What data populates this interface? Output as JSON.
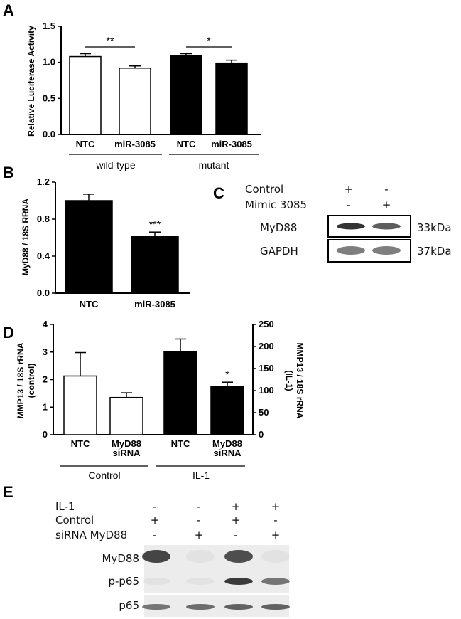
{
  "panels": {
    "A": "A",
    "B": "B",
    "C": "C",
    "D": "D",
    "E": "E"
  },
  "chart_data": [
    {
      "panel": "A",
      "type": "bar",
      "ylabel": "Relative Luciferase Activity",
      "ylim": [
        0,
        1.5
      ],
      "yticks": [
        "0.0",
        "0.5",
        "1.0",
        "1.5"
      ],
      "categories": [
        "NTC",
        "miR-3085",
        "NTC",
        "miR-3085"
      ],
      "values": [
        1.08,
        0.92,
        1.09,
        0.99
      ],
      "errors": [
        0.04,
        0.03,
        0.03,
        0.04
      ],
      "fills": [
        "#ffffff",
        "#ffffff",
        "#000000",
        "#000000"
      ],
      "groups": [
        "wild-type",
        "mutant"
      ],
      "significance": [
        "**",
        "*"
      ]
    },
    {
      "panel": "B",
      "type": "bar",
      "ylabel": "MyD88 / 18S RRNA",
      "ylim": [
        0,
        1.2
      ],
      "yticks": [
        "0.0",
        "0.4",
        "0.8",
        "1.2"
      ],
      "categories": [
        "NTC",
        "miR-3085"
      ],
      "values": [
        1.0,
        0.61
      ],
      "errors": [
        0.07,
        0.05
      ],
      "fills": [
        "#000000",
        "#000000"
      ],
      "significance": [
        "",
        "***"
      ]
    },
    {
      "panel": "D",
      "type": "bar",
      "ylabel_left": "MMP13 / 18S rRNA (control)",
      "ylabel_left_lines": [
        "MMP13 / 18S rRNA",
        "(control)"
      ],
      "ylabel_right": "MMP13 / 18S rRNA (IL-1)",
      "ylabel_right_lines": [
        "MMP13 / 18S rRNA",
        "(IL-1)"
      ],
      "ylim_left": [
        0,
        4
      ],
      "ylim_right": [
        0,
        250
      ],
      "yticks_left": [
        "0",
        "1",
        "2",
        "3",
        "4"
      ],
      "yticks_right": [
        "0",
        "50",
        "100",
        "150",
        "200",
        "250"
      ],
      "categories": [
        "NTC",
        "MyD88 siRNA",
        "NTC",
        "MyD88 siRNA"
      ],
      "category_lines": [
        [
          "NTC"
        ],
        [
          "MyD88",
          "siRNA"
        ],
        [
          "NTC"
        ],
        [
          "MyD88",
          "siRNA"
        ]
      ],
      "values_left_axis": [
        2.13,
        1.35
      ],
      "values_right_axis": [
        189,
        109
      ],
      "errors_left_axis": [
        0.85,
        0.17
      ],
      "errors_right_axis": [
        28,
        10
      ],
      "fills": [
        "#ffffff",
        "#ffffff",
        "#000000",
        "#000000"
      ],
      "groups": [
        "Control",
        "IL-1"
      ],
      "significance": [
        "",
        "",
        "",
        "*"
      ]
    }
  ],
  "blot_c": {
    "row_labels": [
      "Control",
      "Mimic 3085"
    ],
    "lane1_marks": [
      "+",
      "-"
    ],
    "lane2_marks": [
      "-",
      "+"
    ],
    "bands": [
      {
        "label": "MyD88",
        "size": "33kDa",
        "intensity": [
          0.95,
          0.75
        ]
      },
      {
        "label": "GAPDH",
        "size": "37kDa",
        "intensity": [
          0.6,
          0.6
        ]
      }
    ]
  },
  "blot_e": {
    "row_labels": [
      "IL-1",
      "Control",
      "siRNA MyD88"
    ],
    "marks": [
      [
        "-",
        "-",
        "+",
        "+"
      ],
      [
        "+",
        "-",
        "+",
        "-"
      ],
      [
        "-",
        "+",
        "-",
        "+"
      ]
    ],
    "bands": [
      {
        "label": "MyD88",
        "intensity": [
          0.85,
          0.05,
          0.8,
          0.05
        ]
      },
      {
        "label": "p-p65",
        "intensity": [
          0.05,
          0.05,
          0.9,
          0.6
        ]
      },
      {
        "label": "p65",
        "intensity": [
          0.6,
          0.65,
          0.7,
          0.7
        ]
      }
    ]
  }
}
